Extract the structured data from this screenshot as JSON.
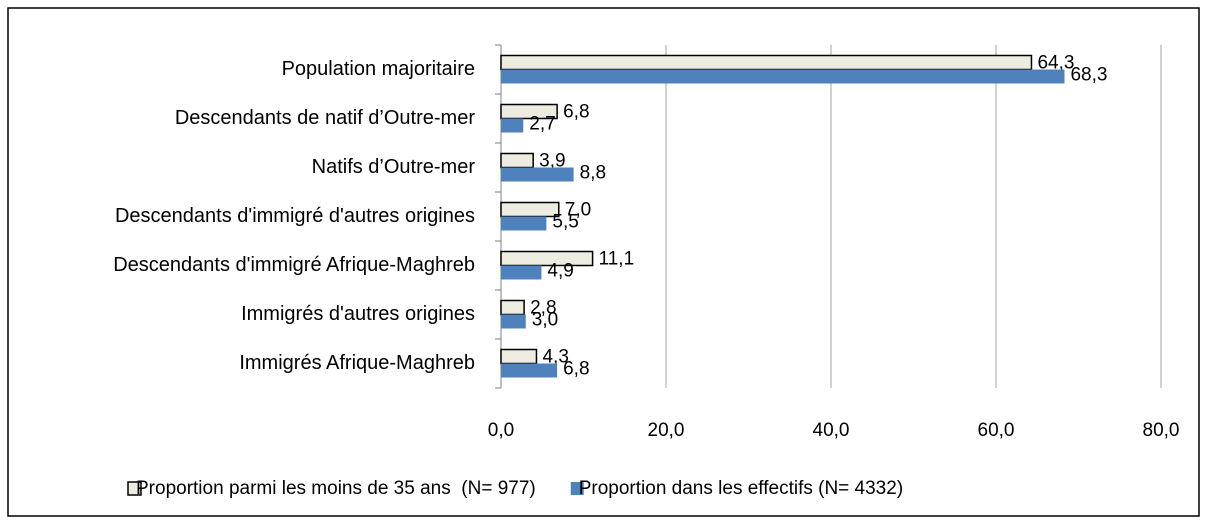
{
  "chart_data": {
    "type": "bar",
    "orientation": "horizontal",
    "categories": [
      "Population majoritaire",
      "Descendants de natif d’Outre-mer",
      "Natifs d’Outre-mer",
      "Descendants d'immigré d'autres origines",
      "Descendants d'immigré Afrique-Maghreb",
      "Immigrés d'autres origines",
      "Immigrés Afrique-Maghreb"
    ],
    "series": [
      {
        "name": "Proportion parmi les moins de 35 ans  (N= 977)",
        "color": "#eeece1",
        "border": "#000000",
        "values": [
          64.3,
          6.8,
          3.9,
          7.0,
          11.1,
          2.8,
          4.3
        ],
        "value_labels": [
          "64,3",
          "6,8",
          "3,9",
          "7,0",
          "11,1",
          "2,8",
          "4,3"
        ]
      },
      {
        "name": "Proportion dans les effectifs (N= 4332)",
        "color": "#4f81bd",
        "values": [
          68.3,
          2.7,
          8.8,
          5.5,
          4.9,
          3.0,
          6.8
        ],
        "value_labels": [
          "68,3",
          "2,7",
          "8,8",
          "5,5",
          "4,9",
          "3,0",
          "6,8"
        ]
      }
    ],
    "xlim": [
      0,
      80
    ],
    "xticks": [
      {
        "value": 0,
        "label": "0,0"
      },
      {
        "value": 20,
        "label": "20,0"
      },
      {
        "value": 40,
        "label": "40,0"
      },
      {
        "value": 60,
        "label": "60,0"
      },
      {
        "value": 80,
        "label": "80,0"
      }
    ],
    "grid": true,
    "legend": "bottom"
  }
}
